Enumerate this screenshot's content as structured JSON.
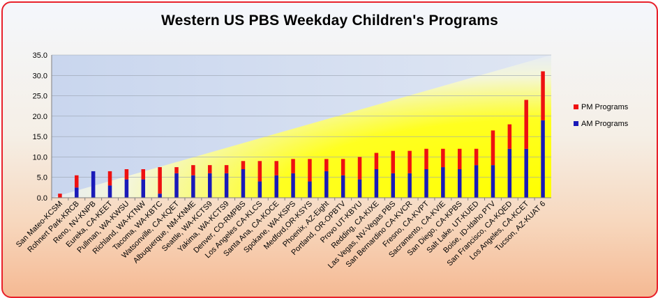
{
  "chart_data": {
    "type": "bar",
    "stacked": true,
    "title": "Western US PBS Weekday Children's Programs",
    "xlabel": "",
    "ylabel": "",
    "ylim": [
      0,
      35
    ],
    "yticks": [
      "0.0",
      "5.0",
      "10.0",
      "15.0",
      "20.0",
      "25.0",
      "30.0",
      "35.0"
    ],
    "legend_position": "right",
    "categories": [
      "San Mateo-KCSM",
      "Rohnert Park-KRCB",
      "Reno, NV-KNPB",
      "Eureka, CA-KEET",
      "Pullman, WA-KWSU",
      "Richland, WA-KTNW",
      "Tacoma, WA-KBTC",
      "Watsonville, CA-KQET",
      "Albuquerque, NM-KNME",
      "Seattle, WA-KCTS9",
      "Yakima, WA-KCTS9",
      "Denver, CO-RMPBS",
      "Los Angeles CA-KLCS",
      "Santa Ana, CA-KOCE",
      "Spokane, WA-KSPS",
      "Medford,OR-KSYS",
      "Phoenix, AZ-Eight",
      "Portland, OR-OPBTV",
      "Provo UT-KBYU",
      "Redding, CA-KIXE",
      "Las Vegas, NV-Vegas PBS",
      "San Bernardino CA-KVCR",
      "Fresno, CA-KVPT",
      "Sacramento, CA-KVIE",
      "San Diego, CA-KPBS",
      "Salt Lake, UT-KUED",
      "Boise, ID-Idaho PTV",
      "San Francisco, CA-KQED",
      "Los Angeles, CA-KCET",
      "Tucson, AZ-KUAT 6"
    ],
    "series": [
      {
        "name": "AM Programs",
        "color": "#1a1ab8",
        "values": [
          0,
          2.5,
          6.5,
          3,
          4.5,
          4.5,
          1,
          6,
          5.5,
          6,
          6,
          7,
          4,
          5.5,
          6,
          4,
          6.5,
          5.5,
          4.5,
          7,
          6,
          6,
          7,
          7.5,
          7,
          8,
          8,
          12,
          12,
          19
        ]
      },
      {
        "name": "PM Programs",
        "color": "#ee1111",
        "values": [
          1,
          3,
          0,
          3.5,
          2.5,
          2.5,
          6.5,
          1.5,
          2.5,
          2,
          2,
          2,
          5,
          3.5,
          3.5,
          5.5,
          3,
          4,
          5.5,
          4,
          5.5,
          5.5,
          5,
          4.5,
          5,
          4,
          8.5,
          6,
          12,
          12
        ]
      }
    ]
  }
}
